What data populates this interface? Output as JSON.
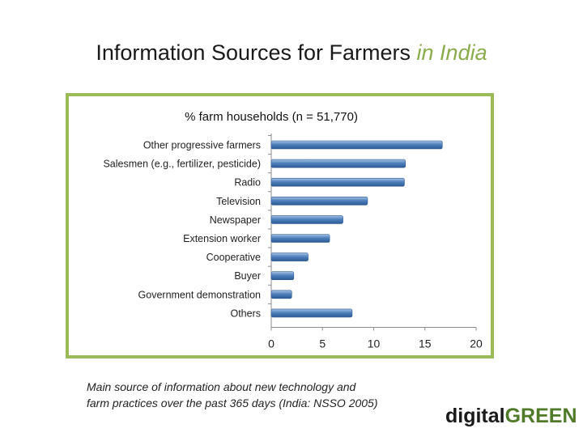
{
  "slide": {
    "title_main": "Information Sources for Farmers",
    "title_accent": "in India",
    "caption_line1": "Main source of information about new technology and",
    "caption_line2": "farm practices over the past 365 days (India: NSSO 2005)",
    "logo_part1": "digital",
    "logo_part2": "GREEN"
  },
  "colors": {
    "bar": "#4f81bd",
    "bar_dark": "#2c5a93",
    "frame": "#9bbb59",
    "accent": "#8aac4a",
    "logo_accent": "#4f7a28"
  },
  "chart_data": {
    "type": "bar",
    "orientation": "horizontal",
    "title": "% farm households (n = 51,770)",
    "categories": [
      "Other progressive farmers",
      "Salesmen (e.g., fertilizer, pesticide)",
      "Radio",
      "Television",
      "Newspaper",
      "Extension worker",
      "Cooperative",
      "Buyer",
      "Government demonstration",
      "Others"
    ],
    "values": [
      16.7,
      13.1,
      13.0,
      9.4,
      7.0,
      5.7,
      3.6,
      2.2,
      2.0,
      7.9
    ],
    "xlim": [
      0,
      20
    ],
    "xticks": [
      0,
      5,
      10,
      15,
      20
    ],
    "xlabel": "",
    "ylabel": "",
    "grid": false,
    "legend": "none"
  }
}
